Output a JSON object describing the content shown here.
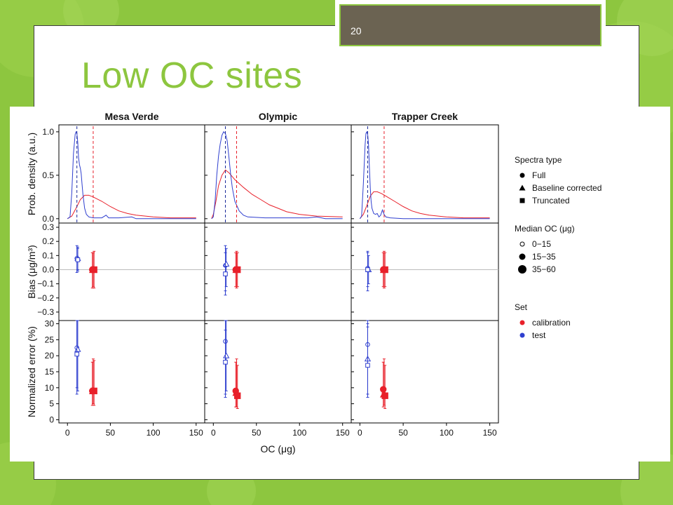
{
  "slide": {
    "title": "Low OC sites",
    "page_number": "20"
  },
  "colors": {
    "background": "#8dc63f",
    "accent": "#8dc63f",
    "tab": "#6b6352",
    "calibration": "#e8202a",
    "test": "#2f3fcf"
  },
  "chart_data": {
    "type": "line",
    "x_label": "OC (μg)",
    "x_range": [
      -10,
      160
    ],
    "x_ticks": [
      0,
      50,
      100,
      150
    ],
    "sites": [
      "Mesa Verde",
      "Olympic",
      "Trapper Creek"
    ],
    "rows": [
      {
        "key": "density",
        "ylabel": "Prob. density (a.u.)",
        "ylim": [
          -0.05,
          1.08
        ],
        "yticks": [
          0.0,
          0.5,
          1.0
        ],
        "tick_labels": [
          "0.0",
          "0.5",
          "1.0"
        ]
      },
      {
        "key": "bias",
        "ylabel": "Bias (μg/m³)",
        "ylim": [
          -0.36,
          0.33
        ],
        "yticks": [
          -0.3,
          -0.2,
          -0.1,
          0.0,
          0.1,
          0.2,
          0.3
        ],
        "tick_labels": [
          "−0.3",
          "−0.2",
          "−0.1",
          "0.0",
          "0.1",
          "0.2",
          "0.3"
        ]
      },
      {
        "key": "error",
        "ylabel": "Normalized error (%)",
        "ylim": [
          -1,
          31
        ],
        "yticks": [
          0,
          5,
          10,
          15,
          20,
          25,
          30
        ],
        "tick_labels": [
          "0",
          "5",
          "10",
          "15",
          "20",
          "25",
          "30"
        ]
      }
    ],
    "panels": [
      {
        "site": "Mesa Verde",
        "test_median": 11,
        "calibration_median": 30,
        "test_density": [
          [
            0,
            0
          ],
          [
            3,
            0.02
          ],
          [
            5,
            0.3
          ],
          [
            7,
            0.75
          ],
          [
            9,
            0.97
          ],
          [
            10,
            1.0
          ],
          [
            11,
            0.98
          ],
          [
            12,
            0.88
          ],
          [
            13,
            0.7
          ],
          [
            14,
            0.62
          ],
          [
            15,
            0.58
          ],
          [
            16,
            0.52
          ],
          [
            17,
            0.4
          ],
          [
            18,
            0.28
          ],
          [
            20,
            0.12
          ],
          [
            22,
            0.05
          ],
          [
            25,
            0.02
          ],
          [
            30,
            0.01
          ],
          [
            40,
            0.01
          ],
          [
            45,
            0.04
          ],
          [
            48,
            0.01
          ],
          [
            60,
            0.01
          ],
          [
            75,
            0.02
          ],
          [
            80,
            0
          ],
          [
            150,
            0
          ]
        ],
        "cal_density": [
          [
            0,
            0
          ],
          [
            5,
            0.03
          ],
          [
            10,
            0.12
          ],
          [
            15,
            0.22
          ],
          [
            20,
            0.27
          ],
          [
            25,
            0.27
          ],
          [
            30,
            0.25
          ],
          [
            40,
            0.2
          ],
          [
            50,
            0.14
          ],
          [
            60,
            0.09
          ],
          [
            70,
            0.06
          ],
          [
            80,
            0.04
          ],
          [
            100,
            0.02
          ],
          [
            120,
            0.01
          ],
          [
            150,
            0.01
          ]
        ],
        "test_bias": [
          {
            "x": 11,
            "y": 0.08,
            "lo": -0.02,
            "hi": 0.17
          },
          {
            "x": 12,
            "y": 0.08,
            "lo": 0.0,
            "hi": 0.15
          },
          {
            "x": 12,
            "y": 0.07,
            "lo": -0.01,
            "hi": 0.16
          }
        ],
        "cal_bias": [
          {
            "x": 29,
            "y": 0.0,
            "lo": -0.13,
            "hi": 0.12
          },
          {
            "x": 30,
            "y": 0.0,
            "lo": -0.12,
            "hi": 0.12
          },
          {
            "x": 31,
            "y": 0.0,
            "lo": -0.13,
            "hi": 0.13
          }
        ],
        "test_error": [
          {
            "x": 11,
            "y": 22.5,
            "lo": 8,
            "hi": 31
          },
          {
            "x": 12,
            "y": 22,
            "lo": 9,
            "hi": 31
          },
          {
            "x": 11,
            "y": 20.5,
            "lo": 10,
            "hi": 31
          }
        ],
        "cal_error": [
          {
            "x": 29,
            "y": 9,
            "lo": 4.5,
            "hi": 18
          },
          {
            "x": 30,
            "y": 9,
            "lo": 5,
            "hi": 19
          },
          {
            "x": 31,
            "y": 9,
            "lo": 4.5,
            "hi": 18.5
          }
        ]
      },
      {
        "site": "Olympic",
        "test_median": 14,
        "calibration_median": 27,
        "test_density": [
          [
            -2,
            0
          ],
          [
            0,
            0.02
          ],
          [
            2,
            0.2
          ],
          [
            4,
            0.5
          ],
          [
            6,
            0.72
          ],
          [
            8,
            0.86
          ],
          [
            10,
            0.96
          ],
          [
            12,
            1.0
          ],
          [
            14,
            0.98
          ],
          [
            16,
            0.9
          ],
          [
            18,
            0.72
          ],
          [
            20,
            0.52
          ],
          [
            22,
            0.36
          ],
          [
            25,
            0.2
          ],
          [
            30,
            0.09
          ],
          [
            35,
            0.04
          ],
          [
            40,
            0.02
          ],
          [
            60,
            0.01
          ],
          [
            80,
            0.01
          ],
          [
            110,
            0.01
          ],
          [
            120,
            0.02
          ],
          [
            130,
            0
          ],
          [
            150,
            0
          ]
        ],
        "cal_density": [
          [
            -2,
            0
          ],
          [
            0,
            0.05
          ],
          [
            3,
            0.2
          ],
          [
            6,
            0.38
          ],
          [
            10,
            0.5
          ],
          [
            14,
            0.56
          ],
          [
            18,
            0.53
          ],
          [
            25,
            0.45
          ],
          [
            35,
            0.36
          ],
          [
            45,
            0.28
          ],
          [
            55,
            0.22
          ],
          [
            65,
            0.16
          ],
          [
            75,
            0.12
          ],
          [
            85,
            0.08
          ],
          [
            100,
            0.05
          ],
          [
            120,
            0.03
          ],
          [
            150,
            0.02
          ]
        ],
        "test_bias": [
          {
            "x": 14,
            "y": 0.03,
            "lo": -0.18,
            "hi": 0.17
          },
          {
            "x": 15,
            "y": 0.04,
            "lo": -0.12,
            "hi": 0.15
          },
          {
            "x": 14,
            "y": -0.03,
            "lo": -0.15,
            "hi": 0.12
          }
        ],
        "cal_bias": [
          {
            "x": 26,
            "y": 0.0,
            "lo": -0.12,
            "hi": 0.12
          },
          {
            "x": 27,
            "y": 0.0,
            "lo": -0.13,
            "hi": 0.13
          },
          {
            "x": 28,
            "y": 0.0,
            "lo": -0.12,
            "hi": 0.12
          }
        ],
        "test_error": [
          {
            "x": 14,
            "y": 24.5,
            "lo": 8,
            "hi": 31
          },
          {
            "x": 15,
            "y": 20,
            "lo": 9,
            "hi": 31
          },
          {
            "x": 14,
            "y": 18,
            "lo": 7,
            "hi": 28
          }
        ],
        "cal_error": [
          {
            "x": 26,
            "y": 9,
            "lo": 4,
            "hi": 18
          },
          {
            "x": 27,
            "y": 8.5,
            "lo": 4,
            "hi": 19
          },
          {
            "x": 28,
            "y": 7.5,
            "lo": 3.5,
            "hi": 17
          }
        ]
      },
      {
        "site": "Trapper Creek",
        "test_median": 9,
        "calibration_median": 28,
        "test_density": [
          [
            0,
            0
          ],
          [
            2,
            0.03
          ],
          [
            4,
            0.4
          ],
          [
            6,
            0.85
          ],
          [
            7,
            0.98
          ],
          [
            8,
            1.0
          ],
          [
            9,
            0.97
          ],
          [
            10,
            0.85
          ],
          [
            11,
            0.6
          ],
          [
            12,
            0.35
          ],
          [
            13,
            0.2
          ],
          [
            14,
            0.12
          ],
          [
            16,
            0.06
          ],
          [
            18,
            0.05
          ],
          [
            20,
            0.06
          ],
          [
            22,
            0.02
          ],
          [
            24,
            0.04
          ],
          [
            26,
            0.1
          ],
          [
            28,
            0.05
          ],
          [
            30,
            0.02
          ],
          [
            35,
            0.01
          ],
          [
            50,
            0
          ],
          [
            150,
            0
          ]
        ],
        "cal_density": [
          [
            0,
            0
          ],
          [
            4,
            0.05
          ],
          [
            8,
            0.15
          ],
          [
            12,
            0.26
          ],
          [
            16,
            0.31
          ],
          [
            20,
            0.31
          ],
          [
            25,
            0.29
          ],
          [
            30,
            0.26
          ],
          [
            40,
            0.2
          ],
          [
            50,
            0.14
          ],
          [
            60,
            0.09
          ],
          [
            70,
            0.06
          ],
          [
            80,
            0.04
          ],
          [
            100,
            0.02
          ],
          [
            120,
            0.01
          ],
          [
            150,
            0.01
          ]
        ],
        "test_bias": [
          {
            "x": 9,
            "y": 0.01,
            "lo": -0.15,
            "hi": 0.13
          },
          {
            "x": 10,
            "y": 0.0,
            "lo": -0.1,
            "hi": 0.1
          },
          {
            "x": 9,
            "y": 0.0,
            "lo": -0.12,
            "hi": 0.12
          }
        ],
        "cal_bias": [
          {
            "x": 27,
            "y": 0.0,
            "lo": -0.12,
            "hi": 0.12
          },
          {
            "x": 28,
            "y": 0.0,
            "lo": -0.13,
            "hi": 0.13
          },
          {
            "x": 29,
            "y": 0.0,
            "lo": -0.12,
            "hi": 0.12
          }
        ],
        "test_error": [
          {
            "x": 9,
            "y": 23.5,
            "lo": 8,
            "hi": 31
          },
          {
            "x": 9,
            "y": 19,
            "lo": 7,
            "hi": 30
          },
          {
            "x": 9,
            "y": 17,
            "lo": 7,
            "hi": 29
          }
        ],
        "cal_error": [
          {
            "x": 27,
            "y": 9.5,
            "lo": 4,
            "hi": 18
          },
          {
            "x": 28,
            "y": 8,
            "lo": 4.5,
            "hi": 19
          },
          {
            "x": 29,
            "y": 7.5,
            "lo": 3.5,
            "hi": 17
          }
        ]
      }
    ],
    "legend": [
      {
        "title": "Spectra type",
        "items": [
          {
            "label": "Full",
            "marker": "circle"
          },
          {
            "label": "Baseline corrected",
            "marker": "triangle"
          },
          {
            "label": "Truncated",
            "marker": "square"
          }
        ]
      },
      {
        "title": "Median OC (μg)",
        "items": [
          {
            "label": "0−15",
            "marker": "circle-open-small"
          },
          {
            "label": "15−35",
            "marker": "circle-filled-medium"
          },
          {
            "label": "35−60",
            "marker": "circle-filled-large"
          }
        ]
      },
      {
        "title": "Set",
        "items": [
          {
            "label": "calibration",
            "marker": "dot-red"
          },
          {
            "label": "test",
            "marker": "dot-blue"
          }
        ]
      }
    ],
    "legend_placement": "right"
  }
}
